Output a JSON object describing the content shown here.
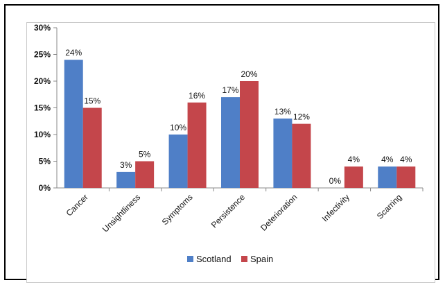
{
  "chart_data": {
    "type": "bar",
    "categories": [
      "Cancer",
      "Unsightliness",
      "Symptoms",
      "Persistence",
      "Deterioration",
      "Infectivity",
      "Scarring"
    ],
    "series": [
      {
        "name": "Scotland",
        "values": [
          24,
          3,
          10,
          17,
          13,
          0,
          4
        ],
        "labels": [
          "24%",
          "3%",
          "10%",
          "17%",
          "13%",
          "0%",
          "4%"
        ]
      },
      {
        "name": "Spain",
        "values": [
          15,
          5,
          16,
          20,
          12,
          4,
          4
        ],
        "labels": [
          "15%",
          "5%",
          "16%",
          "20%",
          "12%",
          "4%",
          "4%"
        ]
      }
    ],
    "yticks": [
      "0%",
      "5%",
      "10%",
      "15%",
      "20%",
      "25%",
      "30%"
    ],
    "ylim": [
      0,
      30
    ],
    "grid": false,
    "legend": "bottom",
    "colors": {
      "Scotland": "#4f7fc7",
      "Spain": "#c4464b"
    }
  }
}
